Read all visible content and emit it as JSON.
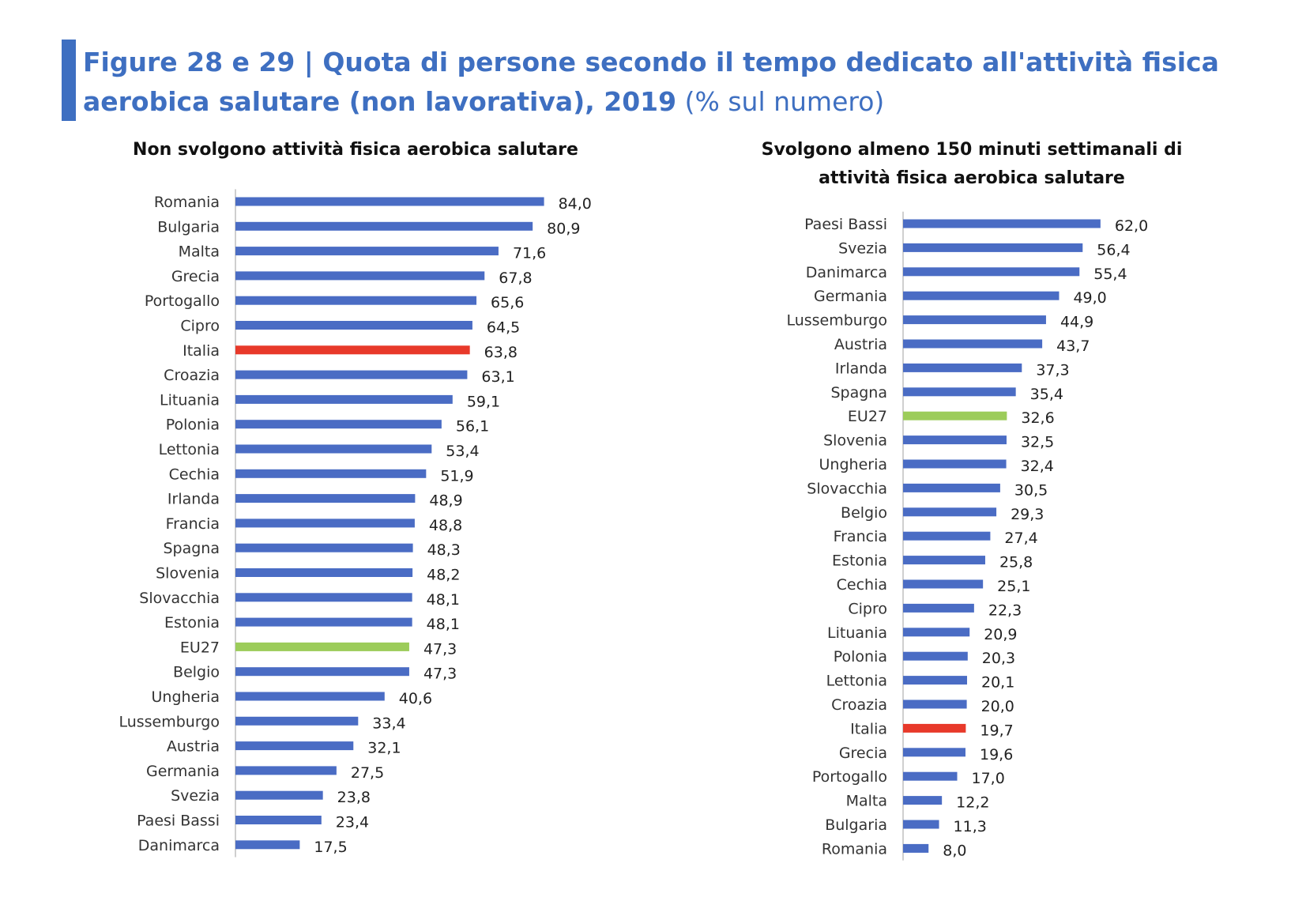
{
  "header": {
    "title_main": "Figure 28 e 29 | Quota di persone secondo il tempo dedicato all'attività fisica aerobica salutare (non lavorativa), 2019",
    "title_unit": "(% sul numero)"
  },
  "colors": {
    "accent": "#3e6fc1",
    "bar_default": "#4a6cc4",
    "bar_italia": "#e8392a",
    "bar_eu27": "#9ccc5a"
  },
  "chart_data": [
    {
      "type": "bar",
      "orientation": "horizontal",
      "title": "Non svolgono attività fisica aerobica salutare",
      "xlim": [
        0,
        100
      ],
      "grid": false,
      "categories": [
        "Romania",
        "Bulgaria",
        "Malta",
        "Grecia",
        "Portogallo",
        "Cipro",
        "Italia",
        "Croazia",
        "Lituania",
        "Polonia",
        "Lettonia",
        "Cechia",
        "Irlanda",
        "Francia",
        "Spagna",
        "Slovenia",
        "Slovacchia",
        "Estonia",
        "EU27",
        "Belgio",
        "Ungheria",
        "Lussemburgo",
        "Austria",
        "Germania",
        "Svezia",
        "Paesi Bassi",
        "Danimarca"
      ],
      "values": [
        84.0,
        80.9,
        71.6,
        67.8,
        65.6,
        64.5,
        63.8,
        63.1,
        59.1,
        56.1,
        53.4,
        51.9,
        48.9,
        48.8,
        48.3,
        48.2,
        48.1,
        48.1,
        47.3,
        47.3,
        40.6,
        33.4,
        32.1,
        27.5,
        23.8,
        23.4,
        17.5
      ],
      "value_labels": [
        "84,0",
        "80,9",
        "71,6",
        "67,8",
        "65,6",
        "64,5",
        "63,8",
        "63,1",
        "59,1",
        "56,1",
        "53,4",
        "51,9",
        "48,9",
        "48,8",
        "48,3",
        "48,2",
        "48,1",
        "48,1",
        "47,3",
        "47,3",
        "40,6",
        "33,4",
        "32,1",
        "27,5",
        "23,8",
        "23,4",
        "17,5"
      ],
      "highlights": {
        "Italia": "#e8392a",
        "EU27": "#9ccc5a"
      }
    },
    {
      "type": "bar",
      "orientation": "horizontal",
      "title": "Svolgono almeno 150 minuti settimanali di attività fisica aerobica salutare",
      "xlim": [
        0,
        100
      ],
      "grid": false,
      "categories": [
        "Paesi Bassi",
        "Svezia",
        "Danimarca",
        "Germania",
        "Lussemburgo",
        "Austria",
        "Irlanda",
        "Spagna",
        "EU27",
        "Slovenia",
        "Ungheria",
        "Slovacchia",
        "Belgio",
        "Francia",
        "Estonia",
        "Cechia",
        "Cipro",
        "Lituania",
        "Polonia",
        "Lettonia",
        "Croazia",
        "Italia",
        "Grecia",
        "Portogallo",
        "Malta",
        "Bulgaria",
        "Romania"
      ],
      "values": [
        62.0,
        56.4,
        55.4,
        49.0,
        44.9,
        43.7,
        37.3,
        35.4,
        32.6,
        32.5,
        32.4,
        30.5,
        29.3,
        27.4,
        25.8,
        25.1,
        22.3,
        20.9,
        20.3,
        20.1,
        20.0,
        19.7,
        19.6,
        17.0,
        12.2,
        11.3,
        8.0
      ],
      "value_labels": [
        "62,0",
        "56,4",
        "55,4",
        "49,0",
        "44,9",
        "43,7",
        "37,3",
        "35,4",
        "32,6",
        "32,5",
        "32,4",
        "30,5",
        "29,3",
        "27,4",
        "25,8",
        "25,1",
        "22,3",
        "20,9",
        "20,3",
        "20,1",
        "20,0",
        "19,7",
        "19,6",
        "17,0",
        "12,2",
        "11,3",
        "8,0"
      ],
      "highlights": {
        "Italia": "#e8392a",
        "EU27": "#9ccc5a"
      }
    }
  ]
}
